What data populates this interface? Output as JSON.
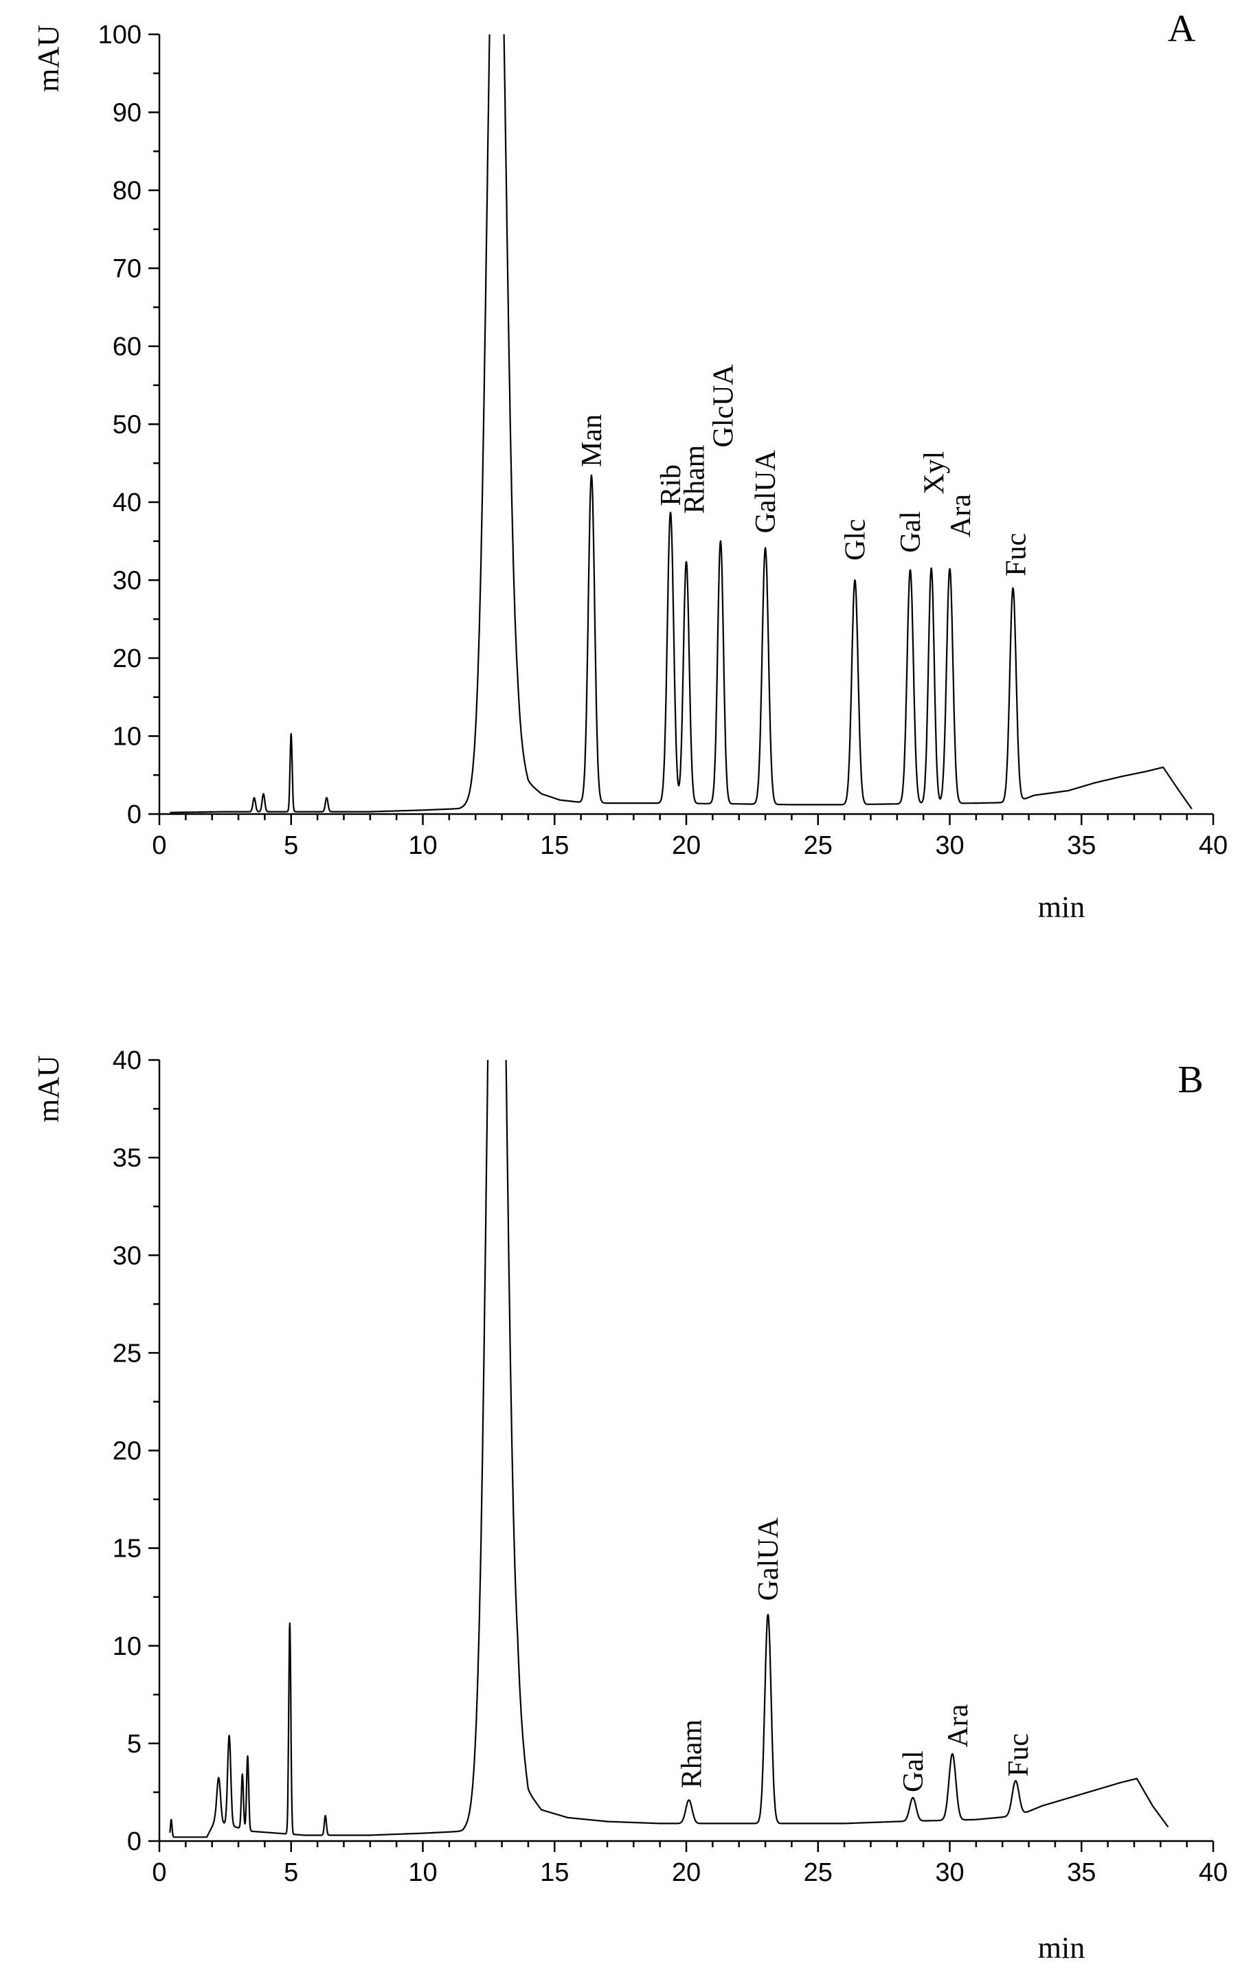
{
  "chart_data": [
    {
      "type": "line",
      "panel": "A",
      "ylabel": "mAU",
      "xlabel": "min",
      "xlim": [
        0,
        40
      ],
      "ylim": [
        0,
        100
      ],
      "x_ticks": [
        0,
        5,
        10,
        15,
        20,
        25,
        30,
        35,
        40
      ],
      "y_ticks": [
        0,
        10,
        20,
        30,
        40,
        50,
        60,
        70,
        80,
        90,
        100
      ],
      "grid": false,
      "baseline": [
        [
          0.4,
          0.2
        ],
        [
          2.5,
          0.3
        ],
        [
          5.5,
          0.3
        ],
        [
          8,
          0.3
        ],
        [
          10,
          0.5
        ],
        [
          11.4,
          0.7
        ],
        [
          12.2,
          1.5
        ],
        [
          13.6,
          8
        ],
        [
          14,
          4
        ],
        [
          14.5,
          2.6
        ],
        [
          15.2,
          1.8
        ],
        [
          16,
          1.5
        ],
        [
          17,
          1.4
        ],
        [
          18.8,
          1.4
        ],
        [
          22,
          1.3
        ],
        [
          24,
          1.2
        ],
        [
          26,
          1.2
        ],
        [
          28,
          1.3
        ],
        [
          31,
          1.4
        ],
        [
          32.5,
          1.5
        ],
        [
          33.2,
          2.4
        ],
        [
          34.5,
          3.0
        ],
        [
          35.5,
          4.0
        ],
        [
          36.5,
          4.8
        ],
        [
          37.5,
          5.5
        ],
        [
          38.1,
          6.0
        ],
        [
          38.7,
          3.0
        ],
        [
          39.2,
          0.6
        ]
      ],
      "peaks": [
        {
          "x": 3.6,
          "h": 1.8,
          "w": 0.05
        },
        {
          "x": 3.95,
          "h": 2.3,
          "w": 0.05
        },
        {
          "x": 5.0,
          "h": 10.0,
          "w": 0.04
        },
        {
          "x": 6.35,
          "h": 1.8,
          "w": 0.05
        },
        {
          "x": 12.8,
          "h": 130,
          "w": 0.35,
          "label": ""
        },
        {
          "x": 16.4,
          "h": 42.0,
          "w": 0.12
        },
        {
          "x": 19.4,
          "h": 37.3,
          "w": 0.12
        },
        {
          "x": 20.0,
          "h": 31.0,
          "w": 0.11
        },
        {
          "x": 21.3,
          "h": 33.7,
          "w": 0.11
        },
        {
          "x": 23.0,
          "h": 32.9,
          "w": 0.12
        },
        {
          "x": 26.4,
          "h": 28.8,
          "w": 0.12
        },
        {
          "x": 28.5,
          "h": 30.0,
          "w": 0.12
        },
        {
          "x": 29.3,
          "h": 30.2,
          "w": 0.11
        },
        {
          "x": 30.0,
          "h": 30.1,
          "w": 0.12
        },
        {
          "x": 32.4,
          "h": 27.5,
          "w": 0.12
        }
      ],
      "peak_labels": [
        {
          "text": "Man",
          "x": 16.4,
          "y": 44.5
        },
        {
          "text": "Rib",
          "x": 19.4,
          "y": 39.5
        },
        {
          "text": "Rham",
          "x": 20.3,
          "y": 38.5
        },
        {
          "text": "GlcUA",
          "x": 21.4,
          "y": 47.0
        },
        {
          "text": "GalUA",
          "x": 23.0,
          "y": 36.0
        },
        {
          "text": "Glc",
          "x": 26.4,
          "y": 32.5
        },
        {
          "text": "Gal",
          "x": 28.5,
          "y": 33.5
        },
        {
          "text": "Xyl",
          "x": 29.4,
          "y": 41.0
        },
        {
          "text": "Ara",
          "x": 30.4,
          "y": 35.5
        },
        {
          "text": "Fuc",
          "x": 32.5,
          "y": 30.5
        }
      ],
      "panel_letter": "A"
    },
    {
      "type": "line",
      "panel": "B",
      "ylabel": "mAU",
      "xlabel": "min",
      "xlim": [
        0,
        40
      ],
      "ylim": [
        0,
        40
      ],
      "x_ticks": [
        0,
        5,
        10,
        15,
        20,
        25,
        30,
        35,
        40
      ],
      "y_ticks": [
        0,
        5,
        10,
        15,
        20,
        25,
        30,
        35,
        40
      ],
      "grid": false,
      "baseline": [
        [
          0.4,
          0.2
        ],
        [
          1.8,
          0.2
        ],
        [
          2.1,
          1.0
        ],
        [
          3.5,
          0.5
        ],
        [
          5.5,
          0.3
        ],
        [
          8,
          0.3
        ],
        [
          10,
          0.4
        ],
        [
          11.5,
          0.5
        ],
        [
          12.2,
          1.0
        ],
        [
          13.6,
          6
        ],
        [
          14,
          2.5
        ],
        [
          14.5,
          1.6
        ],
        [
          15.5,
          1.2
        ],
        [
          17,
          1.0
        ],
        [
          19,
          0.9
        ],
        [
          22,
          0.9
        ],
        [
          24,
          0.9
        ],
        [
          26,
          0.9
        ],
        [
          28,
          1.0
        ],
        [
          31,
          1.1
        ],
        [
          32.6,
          1.3
        ],
        [
          33.5,
          1.8
        ],
        [
          34.5,
          2.2
        ],
        [
          35.5,
          2.6
        ],
        [
          36.5,
          3.0
        ],
        [
          37.1,
          3.2
        ],
        [
          37.7,
          1.8
        ],
        [
          38.3,
          0.7
        ]
      ],
      "peaks": [
        {
          "x": 0.45,
          "h": 0.9,
          "w": 0.03
        },
        {
          "x": 2.25,
          "h": 2.3,
          "w": 0.07
        },
        {
          "x": 2.65,
          "h": 4.6,
          "w": 0.06
        },
        {
          "x": 3.15,
          "h": 2.8,
          "w": 0.04
        },
        {
          "x": 3.35,
          "h": 3.8,
          "w": 0.04
        },
        {
          "x": 4.95,
          "h": 10.8,
          "w": 0.04
        },
        {
          "x": 6.3,
          "h": 1.0,
          "w": 0.04
        },
        {
          "x": 12.8,
          "h": 60,
          "w": 0.35
        },
        {
          "x": 20.1,
          "h": 1.2,
          "w": 0.12
        },
        {
          "x": 23.1,
          "h": 10.7,
          "w": 0.12
        },
        {
          "x": 28.6,
          "h": 1.2,
          "w": 0.12
        },
        {
          "x": 30.1,
          "h": 3.4,
          "w": 0.13
        },
        {
          "x": 32.5,
          "h": 1.8,
          "w": 0.13
        }
      ],
      "peak_labels": [
        {
          "text": "Rham",
          "x": 20.2,
          "y": 2.7
        },
        {
          "text": "GalUA",
          "x": 23.1,
          "y": 12.3
        },
        {
          "text": "Gal",
          "x": 28.6,
          "y": 2.5
        },
        {
          "text": "Ara",
          "x": 30.3,
          "y": 4.8
        },
        {
          "text": "Fuc",
          "x": 32.6,
          "y": 3.3
        }
      ],
      "panel_letter": "B"
    }
  ]
}
